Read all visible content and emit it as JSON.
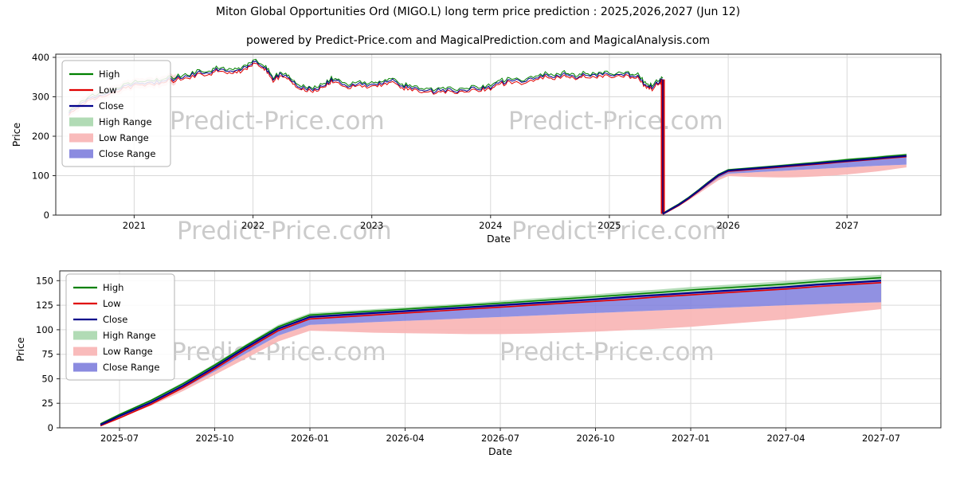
{
  "page": {
    "title": "Miton Global Opportunities Ord (MIGO.L) long term price prediction : 2025,2026,2027 (Jun 12)",
    "subtitle": "powered by Predict-Price.com and MagicalPrediction.com and MagicalAnalysis.com",
    "watermark_text": "Predict-Price.com"
  },
  "colors": {
    "high": "#008000",
    "low": "#e00000",
    "close": "#00008b",
    "high_range": "#a9d7ad",
    "low_range": "#f8b4b4",
    "close_range": "#7e7edd",
    "grid": "#d9d9d9",
    "frame": "#262626",
    "watermark": "#cbcbcb"
  },
  "legend_entries": [
    {
      "label": "High",
      "color": "high",
      "type": "line"
    },
    {
      "label": "Low",
      "color": "low",
      "type": "line"
    },
    {
      "label": "Close",
      "color": "close",
      "type": "line"
    },
    {
      "label": "High Range",
      "color": "high_range",
      "type": "patch"
    },
    {
      "label": "Low Range",
      "color": "low_range",
      "type": "patch"
    },
    {
      "label": "Close Range",
      "color": "close_range",
      "type": "patch"
    }
  ],
  "chart_data": [
    {
      "type": "line",
      "name": "long-term-history-and-forecast",
      "xlabel": "Date",
      "ylabel": "Price",
      "grid": true,
      "legend_position": "upper left",
      "xlim": [
        2020.34,
        2027.79
      ],
      "ylim": [
        0,
        408
      ],
      "x_ticks": [
        {
          "v": 2021,
          "label": "2021"
        },
        {
          "v": 2022,
          "label": "2022"
        },
        {
          "v": 2023,
          "label": "2023"
        },
        {
          "v": 2024,
          "label": "2024"
        },
        {
          "v": 2025,
          "label": "2025"
        },
        {
          "v": 2026,
          "label": "2026"
        },
        {
          "v": 2027,
          "label": "2027"
        }
      ],
      "y_ticks": [
        {
          "v": 0,
          "label": "0"
        },
        {
          "v": 100,
          "label": "100"
        },
        {
          "v": 200,
          "label": "200"
        },
        {
          "v": 300,
          "label": "300"
        },
        {
          "v": 400,
          "label": "400"
        }
      ],
      "historical": {
        "noise_amp": 5,
        "hl_offset": 3,
        "early_band_end": 2021.35,
        "early_band_halfwidth": 13,
        "t": [
          2020.45,
          2020.55,
          2020.65,
          2020.75,
          2020.85,
          2020.95,
          2021.05,
          2021.15,
          2021.25,
          2021.35,
          2021.45,
          2021.55,
          2021.65,
          2021.72,
          2021.8,
          2021.88,
          2021.95,
          2022.0,
          2022.06,
          2022.12,
          2022.17,
          2022.24,
          2022.3,
          2022.36,
          2022.44,
          2022.52,
          2022.6,
          2022.66,
          2022.72,
          2022.8,
          2022.9,
          2023.0,
          2023.08,
          2023.16,
          2023.24,
          2023.32,
          2023.42,
          2023.52,
          2023.62,
          2023.72,
          2023.82,
          2023.92,
          2024.0,
          2024.08,
          2024.16,
          2024.26,
          2024.36,
          2024.46,
          2024.54,
          2024.62,
          2024.7,
          2024.78,
          2024.88,
          2024.96,
          2025.06,
          2025.16,
          2025.24,
          2025.3,
          2025.36,
          2025.42,
          2025.45
        ],
        "close": [
          258,
          283,
          298,
          306,
          318,
          330,
          332,
          337,
          341,
          348,
          352,
          360,
          364,
          372,
          362,
          368,
          378,
          390,
          383,
          368,
          346,
          358,
          352,
          331,
          322,
          318,
          330,
          345,
          339,
          328,
          334,
          330,
          336,
          344,
          328,
          323,
          318,
          313,
          317,
          315,
          320,
          322,
          324,
          336,
          340,
          338,
          344,
          355,
          351,
          357,
          350,
          356,
          354,
          356,
          357,
          355,
          351,
          331,
          322,
          340,
          344
        ]
      },
      "crash": {
        "t": 2025.45,
        "from": 344,
        "to": 3
      }
    },
    {
      "type": "line",
      "name": "forecast-detail",
      "xlabel": "Date",
      "ylabel": "Price",
      "grid": true,
      "legend_position": "upper left",
      "xlim": [
        2025.343,
        2027.657
      ],
      "ylim": [
        0,
        160
      ],
      "x_ticks": [
        {
          "v": 2025.5,
          "label": "2025-07"
        },
        {
          "v": 2025.75,
          "label": "2025-10"
        },
        {
          "v": 2026.0,
          "label": "2026-01"
        },
        {
          "v": 2026.25,
          "label": "2026-04"
        },
        {
          "v": 2026.5,
          "label": "2026-07"
        },
        {
          "v": 2026.75,
          "label": "2026-10"
        },
        {
          "v": 2027.0,
          "label": "2027-01"
        },
        {
          "v": 2027.25,
          "label": "2027-04"
        },
        {
          "v": 2027.5,
          "label": "2027-07"
        }
      ],
      "y_ticks": [
        {
          "v": 0,
          "label": "0"
        },
        {
          "v": 25,
          "label": "25"
        },
        {
          "v": 50,
          "label": "50"
        },
        {
          "v": 75,
          "label": "75"
        },
        {
          "v": 100,
          "label": "100"
        },
        {
          "v": 125,
          "label": "125"
        },
        {
          "v": 150,
          "label": "150"
        }
      ],
      "series": {
        "t": [
          2025.45,
          2025.5,
          2025.583,
          2025.667,
          2025.75,
          2025.833,
          2025.917,
          2026.0,
          2026.083,
          2026.167,
          2026.25,
          2026.333,
          2026.417,
          2026.5,
          2026.583,
          2026.667,
          2026.75,
          2026.833,
          2026.917,
          2027.0,
          2027.083,
          2027.167,
          2027.25,
          2027.333,
          2027.417,
          2027.5
        ],
        "close": [
          3,
          12,
          26,
          43,
          62,
          82,
          101,
          113,
          115,
          117,
          119,
          121,
          123,
          125,
          127,
          129,
          131,
          133.5,
          135.5,
          137.5,
          139.5,
          141.5,
          143.5,
          146,
          148,
          150
        ],
        "high": [
          4,
          13.5,
          28,
          45,
          64,
          84,
          103,
          115,
          117,
          119,
          121,
          123,
          125,
          127,
          129.2,
          131.4,
          133.6,
          135.8,
          138,
          140.5,
          142.5,
          144.5,
          146.5,
          149,
          151,
          153
        ],
        "low": [
          2,
          10,
          24,
          41,
          60,
          80,
          99,
          111,
          113,
          115,
          117,
          119,
          121,
          123,
          125,
          127,
          129,
          131,
          133.5,
          135.5,
          137.5,
          139.5,
          141.5,
          144,
          146,
          148
        ],
        "high_range_upper": [
          5,
          14.5,
          29,
          46.5,
          65.5,
          85.5,
          105,
          117,
          119,
          121,
          123,
          125,
          127,
          129.5,
          131.7,
          133.9,
          136.1,
          138.8,
          141,
          143.5,
          145.5,
          147.5,
          149.5,
          152,
          154,
          156
        ],
        "close_range_lower": [
          2.5,
          11,
          24,
          40,
          57.5,
          76,
          94,
          105,
          106.3,
          107.7,
          109,
          110.3,
          111.7,
          113,
          114.3,
          115.7,
          117,
          118.3,
          119.7,
          121,
          122.3,
          123.7,
          125,
          126,
          127,
          128
        ],
        "low_range_lower": [
          2,
          10,
          22.5,
          37.5,
          54,
          71,
          88,
          99,
          98,
          97,
          96.5,
          96,
          95.5,
          95.5,
          96,
          97,
          98,
          99.5,
          101,
          103,
          105.5,
          108,
          110.5,
          114,
          117.5,
          121
        ]
      }
    }
  ]
}
